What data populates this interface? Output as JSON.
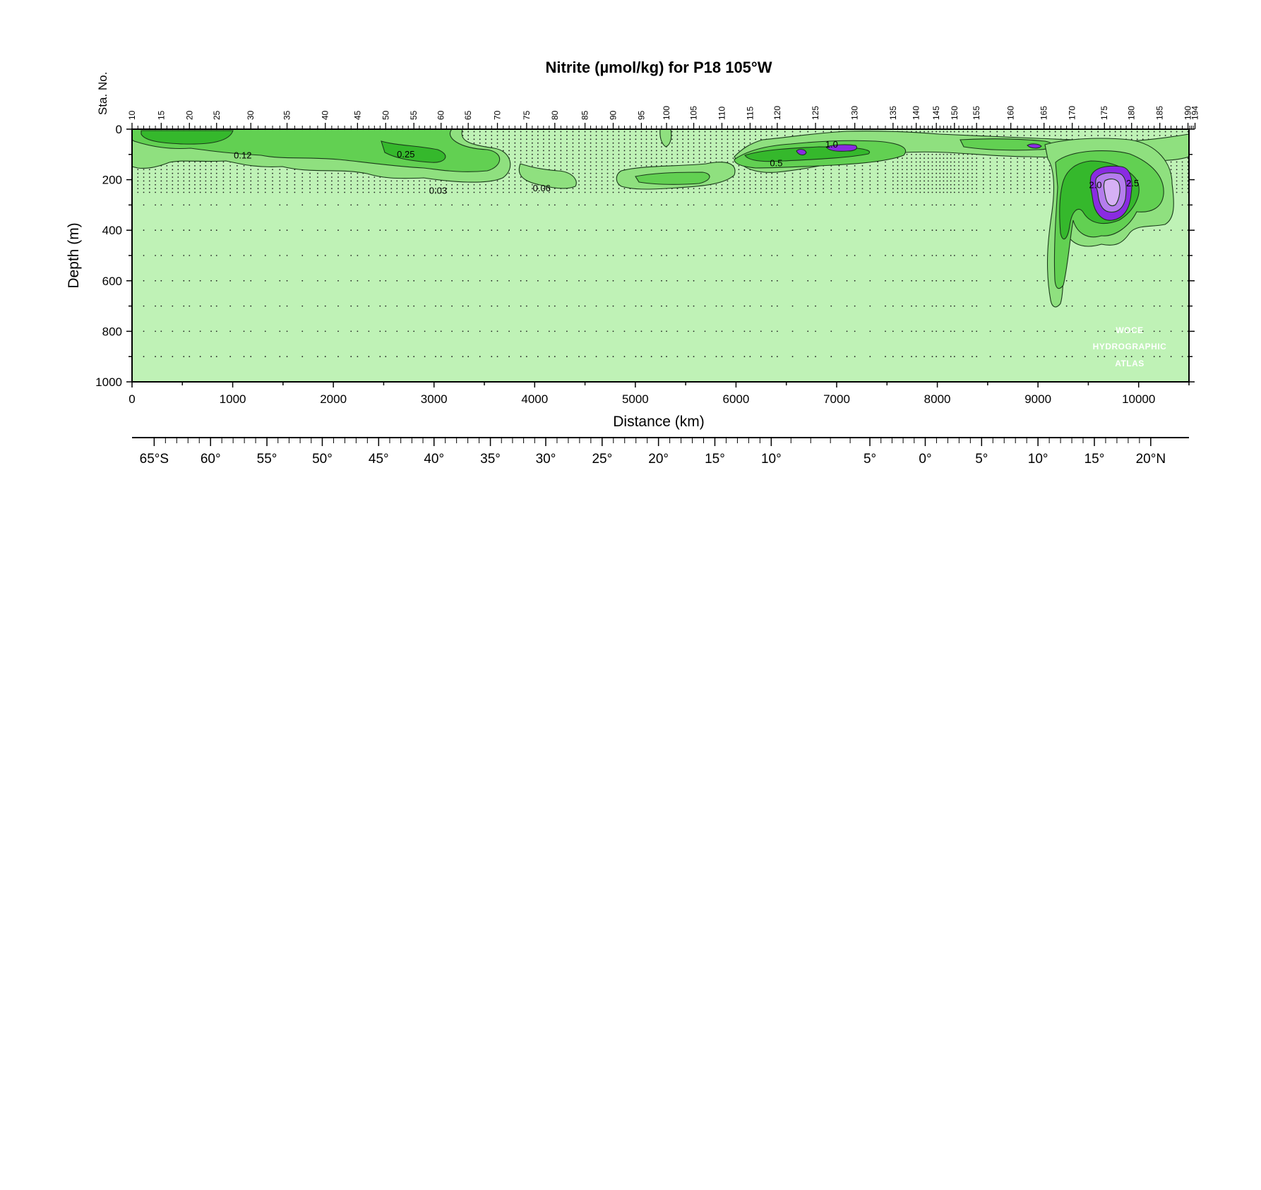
{
  "chart_data": {
    "type": "heatmap",
    "title": "Nitrite (µmol/kg) for P18 105°W",
    "xlabel": "Distance (km)",
    "ylabel": "Depth (m)",
    "xlim": [
      0,
      10500
    ],
    "ylim": [
      1000,
      0
    ],
    "x_ticks": [
      0,
      1000,
      2000,
      3000,
      4000,
      5000,
      6000,
      7000,
      8000,
      9000,
      10000
    ],
    "y_ticks": [
      0,
      200,
      400,
      600,
      800,
      1000
    ],
    "station_label": "Sta. No.",
    "station_ticks": [
      {
        "label": "10",
        "km": 0
      },
      {
        "label": "15",
        "km": 290
      },
      {
        "label": "20",
        "km": 570
      },
      {
        "label": "25",
        "km": 840
      },
      {
        "label": "30",
        "km": 1180
      },
      {
        "label": "35",
        "km": 1540
      },
      {
        "label": "40",
        "km": 1920
      },
      {
        "label": "45",
        "km": 2240
      },
      {
        "label": "50",
        "km": 2520
      },
      {
        "label": "55",
        "km": 2800
      },
      {
        "label": "60",
        "km": 3070
      },
      {
        "label": "65",
        "km": 3340
      },
      {
        "label": "70",
        "km": 3630
      },
      {
        "label": "75",
        "km": 3920
      },
      {
        "label": "80",
        "km": 4200
      },
      {
        "label": "85",
        "km": 4500
      },
      {
        "label": "90",
        "km": 4780
      },
      {
        "label": "95",
        "km": 5060
      },
      {
        "label": "100",
        "km": 5310
      },
      {
        "label": "105",
        "km": 5580
      },
      {
        "label": "110",
        "km": 5860
      },
      {
        "label": "115",
        "km": 6140
      },
      {
        "label": "120",
        "km": 6410
      },
      {
        "label": "125",
        "km": 6790
      },
      {
        "label": "130",
        "km": 7180
      },
      {
        "label": "135",
        "km": 7560
      },
      {
        "label": "140",
        "km": 7790
      },
      {
        "label": "145",
        "km": 7990
      },
      {
        "label": "150",
        "km": 8170
      },
      {
        "label": "155",
        "km": 8390
      },
      {
        "label": "160",
        "km": 8730
      },
      {
        "label": "165",
        "km": 9060
      },
      {
        "label": "170",
        "km": 9340
      },
      {
        "label": "175",
        "km": 9660
      },
      {
        "label": "180",
        "km": 9930
      },
      {
        "label": "185",
        "km": 10210
      },
      {
        "label": "190",
        "km": 10490
      },
      {
        "label": "194",
        "km": 10560
      }
    ],
    "lat_ticks": [
      {
        "label": "65°S",
        "km": 220
      },
      {
        "label": "60°",
        "km": 780
      },
      {
        "label": "55°",
        "km": 1340
      },
      {
        "label": "50°",
        "km": 1890
      },
      {
        "label": "45°",
        "km": 2450
      },
      {
        "label": "40°",
        "km": 3000
      },
      {
        "label": "35°",
        "km": 3560
      },
      {
        "label": "30°",
        "km": 4110
      },
      {
        "label": "25°",
        "km": 4670
      },
      {
        "label": "20°",
        "km": 5230
      },
      {
        "label": "15°",
        "km": 5790
      },
      {
        "label": "10°",
        "km": 6350
      },
      {
        "label": "5°",
        "km": 7330
      },
      {
        "label": "0°",
        "km": 7880
      },
      {
        "label": "5°",
        "km": 8440
      },
      {
        "label": "10°",
        "km": 9000
      },
      {
        "label": "15°",
        "km": 9560
      },
      {
        "label": "20°N",
        "km": 10120
      }
    ],
    "contour_levels": [
      0.03,
      0.06,
      0.12,
      0.25,
      0.5,
      1.0,
      2.0,
      2.5
    ],
    "contour_labels": [
      {
        "text": "0.12",
        "km": 1100,
        "depth": 105
      },
      {
        "text": "0.25",
        "km": 2720,
        "depth": 100
      },
      {
        "text": "0.03",
        "km": 3040,
        "depth": 245
      },
      {
        "text": "0.06",
        "km": 4070,
        "depth": 235
      },
      {
        "text": "0.5",
        "km": 6400,
        "depth": 135
      },
      {
        "text": "1.0",
        "km": 6950,
        "depth": 62
      },
      {
        "text": "2.0",
        "km": 9570,
        "depth": 222
      },
      {
        "text": "2.5",
        "km": 9940,
        "depth": 215
      }
    ],
    "colors": {
      "background": "#bff2b6",
      "low": "#8fe07f",
      "mid": "#62d052",
      "high": "#35b82c",
      "violet": "#8a2be2",
      "violet_light": "#b57ded",
      "violet_pale": "#d6b0f5"
    },
    "watermark": [
      "WOCE",
      "HYDROGRAPHIC",
      "ATLAS"
    ]
  }
}
